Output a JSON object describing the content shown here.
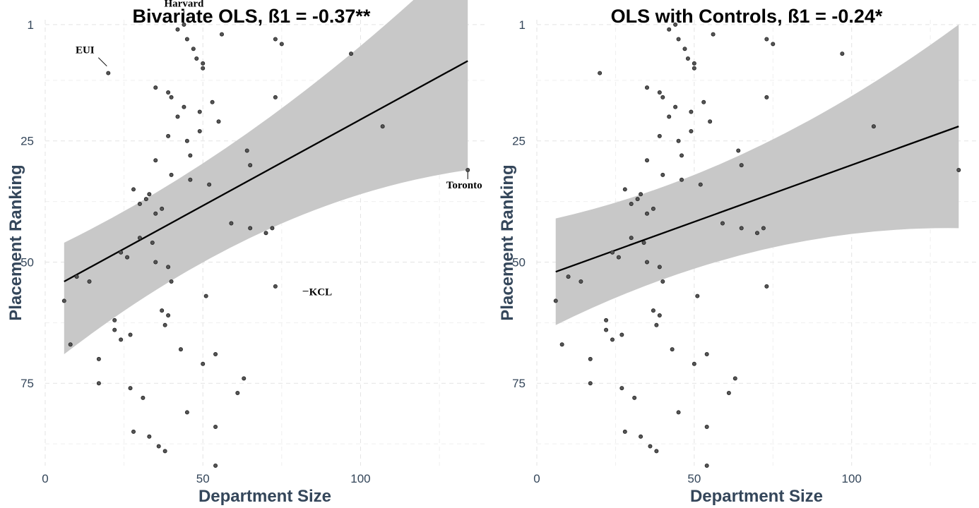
{
  "chart_data": [
    {
      "type": "scatter",
      "title": "Bivariate OLS, ß1 = -0.37**",
      "xlabel": "Department Size",
      "ylabel": "Placement Ranking",
      "xlim": [
        0,
        140
      ],
      "ylim": [
        0,
        92
      ],
      "y_reversed": true,
      "grid": true,
      "xticks": [
        0,
        50,
        100
      ],
      "yticks": [
        1,
        25,
        50,
        75
      ],
      "fit": {
        "x": [
          6,
          134
        ],
        "y": [
          54,
          8.5
        ],
        "ci_lower": [
          46,
          -14.5
        ],
        "ci_upper": [
          69,
          31
        ]
      },
      "annotations": [
        {
          "text": "Harvard",
          "x": 44,
          "y": 0.5
        },
        {
          "text": "EUI",
          "x": 20,
          "y": 10
        },
        {
          "text": "Toronto",
          "x": 134,
          "y": 31
        },
        {
          "text": "KCL",
          "x": 81,
          "y": 56
        }
      ],
      "points": [
        [
          6,
          58
        ],
        [
          8,
          67
        ],
        [
          10,
          53
        ],
        [
          14,
          54
        ],
        [
          17,
          70
        ],
        [
          17,
          75
        ],
        [
          20,
          11
        ],
        [
          22,
          62
        ],
        [
          22,
          64
        ],
        [
          24,
          48
        ],
        [
          24,
          66
        ],
        [
          26,
          49
        ],
        [
          27,
          65
        ],
        [
          27,
          76
        ],
        [
          28,
          35
        ],
        [
          28,
          85
        ],
        [
          30,
          45
        ],
        [
          30,
          38
        ],
        [
          31,
          78
        ],
        [
          32,
          37
        ],
        [
          33,
          36
        ],
        [
          33,
          86
        ],
        [
          34,
          46
        ],
        [
          35,
          14
        ],
        [
          35,
          29
        ],
        [
          35,
          40
        ],
        [
          35,
          50
        ],
        [
          36,
          88
        ],
        [
          37,
          39
        ],
        [
          37,
          60
        ],
        [
          38,
          63
        ],
        [
          38,
          89
        ],
        [
          39,
          15
        ],
        [
          39,
          24
        ],
        [
          39,
          51
        ],
        [
          39,
          61
        ],
        [
          40,
          16
        ],
        [
          40,
          32
        ],
        [
          40,
          54
        ],
        [
          42,
          2
        ],
        [
          42,
          20
        ],
        [
          43,
          68
        ],
        [
          44,
          1
        ],
        [
          44,
          18
        ],
        [
          45,
          4
        ],
        [
          45,
          25
        ],
        [
          45,
          81
        ],
        [
          46,
          28
        ],
        [
          46,
          33
        ],
        [
          47,
          6
        ],
        [
          48,
          8
        ],
        [
          49,
          23
        ],
        [
          49,
          19
        ],
        [
          50,
          9
        ],
        [
          50,
          10
        ],
        [
          50,
          71
        ],
        [
          51,
          57
        ],
        [
          52,
          34
        ],
        [
          53,
          17
        ],
        [
          54,
          69
        ],
        [
          54,
          84
        ],
        [
          54,
          92
        ],
        [
          55,
          21
        ],
        [
          56,
          3
        ],
        [
          59,
          42
        ],
        [
          61,
          77
        ],
        [
          63,
          74
        ],
        [
          64,
          27
        ],
        [
          65,
          30
        ],
        [
          65,
          43
        ],
        [
          70,
          44
        ],
        [
          72,
          43
        ],
        [
          73,
          4
        ],
        [
          73,
          16
        ],
        [
          73,
          55
        ],
        [
          75,
          5
        ],
        [
          97,
          7
        ],
        [
          107,
          22
        ],
        [
          134,
          31
        ]
      ]
    },
    {
      "type": "scatter",
      "title": "OLS with Controls, ß1 = -0.24*",
      "xlabel": "Department Size",
      "ylabel": "Placement Ranking",
      "xlim": [
        0,
        140
      ],
      "ylim": [
        0,
        92
      ],
      "y_reversed": true,
      "grid": true,
      "xticks": [
        0,
        50,
        100
      ],
      "yticks": [
        1,
        25,
        50,
        75
      ],
      "fit": {
        "x": [
          6,
          134
        ],
        "y": [
          52,
          22
        ],
        "ci_lower": [
          41,
          1
        ],
        "ci_upper": [
          63,
          43
        ]
      },
      "annotations": [],
      "points": [
        [
          6,
          58
        ],
        [
          8,
          67
        ],
        [
          10,
          53
        ],
        [
          14,
          54
        ],
        [
          17,
          70
        ],
        [
          17,
          75
        ],
        [
          20,
          11
        ],
        [
          22,
          62
        ],
        [
          22,
          64
        ],
        [
          24,
          48
        ],
        [
          24,
          66
        ],
        [
          26,
          49
        ],
        [
          27,
          65
        ],
        [
          27,
          76
        ],
        [
          28,
          35
        ],
        [
          28,
          85
        ],
        [
          30,
          45
        ],
        [
          30,
          38
        ],
        [
          31,
          78
        ],
        [
          32,
          37
        ],
        [
          33,
          36
        ],
        [
          33,
          86
        ],
        [
          34,
          46
        ],
        [
          35,
          14
        ],
        [
          35,
          29
        ],
        [
          35,
          40
        ],
        [
          35,
          50
        ],
        [
          36,
          88
        ],
        [
          37,
          39
        ],
        [
          37,
          60
        ],
        [
          38,
          63
        ],
        [
          38,
          89
        ],
        [
          39,
          15
        ],
        [
          39,
          24
        ],
        [
          39,
          51
        ],
        [
          39,
          61
        ],
        [
          40,
          16
        ],
        [
          40,
          32
        ],
        [
          40,
          54
        ],
        [
          42,
          2
        ],
        [
          42,
          20
        ],
        [
          43,
          68
        ],
        [
          44,
          1
        ],
        [
          44,
          18
        ],
        [
          45,
          4
        ],
        [
          45,
          25
        ],
        [
          45,
          81
        ],
        [
          46,
          28
        ],
        [
          46,
          33
        ],
        [
          47,
          6
        ],
        [
          48,
          8
        ],
        [
          49,
          23
        ],
        [
          49,
          19
        ],
        [
          50,
          9
        ],
        [
          50,
          10
        ],
        [
          50,
          71
        ],
        [
          51,
          57
        ],
        [
          52,
          34
        ],
        [
          53,
          17
        ],
        [
          54,
          69
        ],
        [
          54,
          84
        ],
        [
          54,
          92
        ],
        [
          55,
          21
        ],
        [
          56,
          3
        ],
        [
          59,
          42
        ],
        [
          61,
          77
        ],
        [
          63,
          74
        ],
        [
          64,
          27
        ],
        [
          65,
          30
        ],
        [
          65,
          43
        ],
        [
          70,
          44
        ],
        [
          72,
          43
        ],
        [
          73,
          4
        ],
        [
          73,
          16
        ],
        [
          73,
          55
        ],
        [
          75,
          5
        ],
        [
          97,
          7
        ],
        [
          107,
          22
        ],
        [
          134,
          31
        ]
      ]
    }
  ]
}
